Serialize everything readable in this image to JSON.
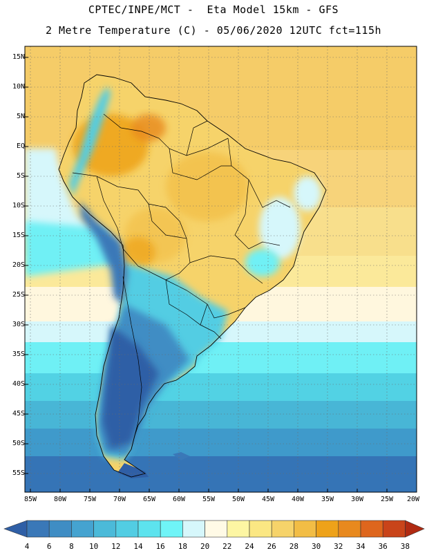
{
  "header": {
    "line1": "CPTEC/INPE/MCT -  Eta Model 15km - GFS",
    "line2": "2 Metre Temperature (C) - 05/06/2020 12UTC fct=115h"
  },
  "map": {
    "lat_labels": [
      "15N",
      "10N",
      "5N",
      "EQ",
      "5S",
      "10S",
      "15S",
      "20S",
      "25S",
      "30S",
      "35S",
      "40S",
      "45S",
      "50S",
      "55S"
    ],
    "lon_labels": [
      "85W",
      "80W",
      "75W",
      "70W",
      "65W",
      "60W",
      "55W",
      "50W",
      "45W",
      "40W",
      "35W",
      "30W",
      "25W",
      "20W"
    ]
  },
  "colorbar": {
    "labels": [
      "4",
      "6",
      "8",
      "10",
      "12",
      "14",
      "16",
      "18",
      "20",
      "22",
      "24",
      "26",
      "28",
      "30",
      "32",
      "34",
      "36",
      "38"
    ],
    "colors": [
      "#2f5fa6",
      "#3a78b8",
      "#3f8dc4",
      "#45a3d0",
      "#4bbad9",
      "#52cde3",
      "#5de3ee",
      "#6ff4f7",
      "#d6f7fb",
      "#fffae6",
      "#fdf6a3",
      "#fbe783",
      "#f6d36a",
      "#f2bd45",
      "#eea219",
      "#e8891e",
      "#de661d",
      "#c9441a",
      "#b02a12"
    ]
  }
}
